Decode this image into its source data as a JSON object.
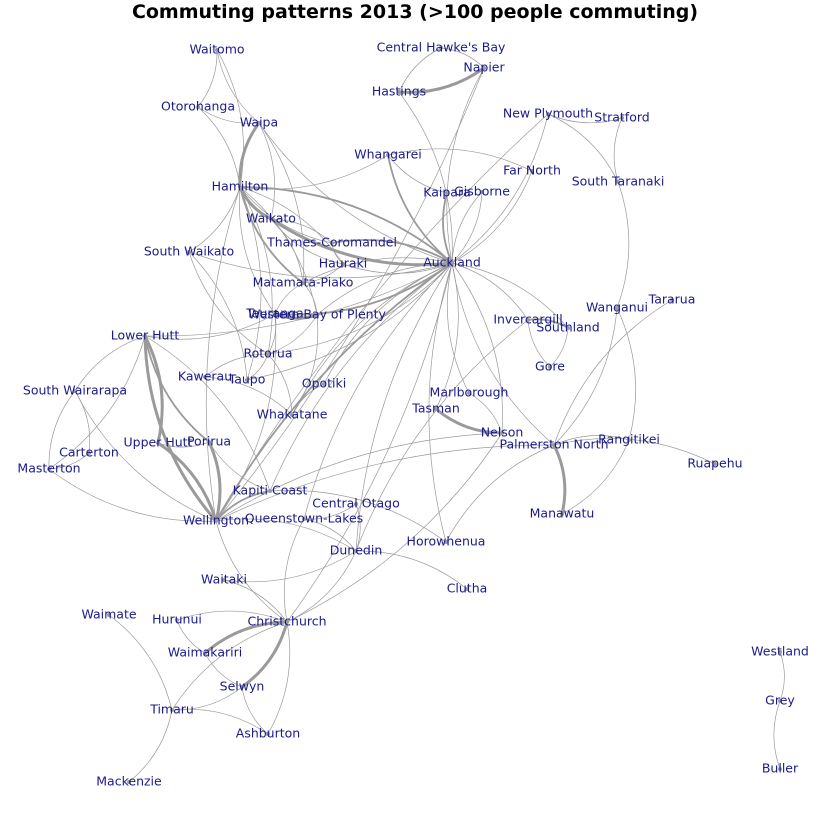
{
  "title": "Commuting patterns 2013 (>100 people commuting)",
  "colors": {
    "label": "#1a1a8c",
    "edge": "#9a9a9a",
    "background": "#ffffff"
  },
  "nodes": [
    "Waitomo",
    "Central Hawke's Bay",
    "Napier",
    "Hastings",
    "Otorohanga",
    "Waipa",
    "New Plymouth",
    "Stratford",
    "Whangarei",
    "Far North",
    "Hamilton",
    "Kaipara",
    "Gisborne",
    "South Taranaki",
    "Waikato",
    "Thames-Coromandel",
    "South Waikato",
    "Auckland",
    "Hauraki",
    "Matamata-Piako",
    "Tauranga",
    "Western Bay of Plenty",
    "Tararua",
    "Wanganui",
    "Invercargill",
    "Southland",
    "Lower Hutt",
    "Rotorua",
    "Gore",
    "Kawerau",
    "Taupo",
    "Opotiki",
    "South Wairarapa",
    "Marlborough",
    "Tasman",
    "Whakatane",
    "Nelson",
    "Upper Hutt",
    "Porirua",
    "Rangitikei",
    "Palmerston North",
    "Carterton",
    "Ruapehu",
    "Masterton",
    "Kapiti Coast",
    "Central Otago",
    "Wellington",
    "Queenstown-Lakes",
    "Manawatu",
    "Horowhenua",
    "Dunedin",
    "Waitaki",
    "Clutha",
    "Waimate",
    "Hurunui",
    "Christchurch",
    "Westland",
    "Waimakariri",
    "Selwyn",
    "Grey",
    "Timaru",
    "Ashburton",
    "Buller",
    "Mackenzie"
  ]
}
